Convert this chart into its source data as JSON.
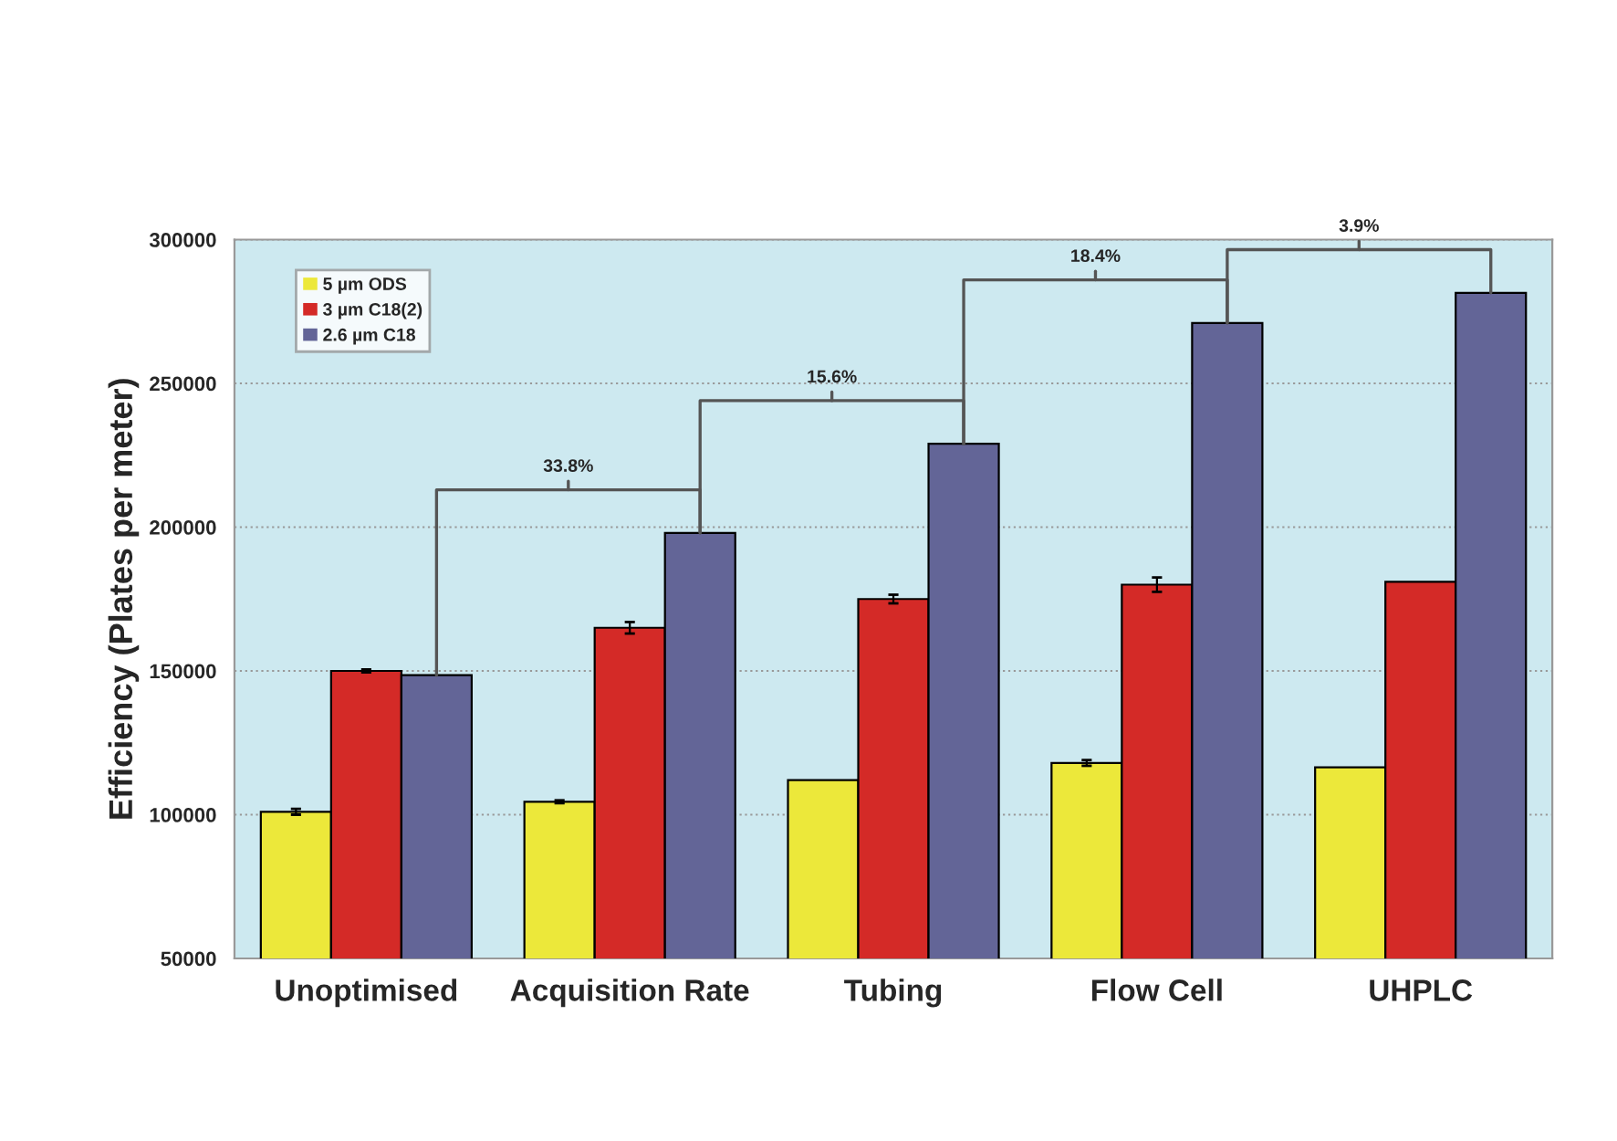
{
  "chart_data": {
    "type": "bar",
    "ylabel": "Efficiency (Plates per meter)",
    "categories": [
      "Unoptimised",
      "Acquisition Rate",
      "Tubing",
      "Flow Cell",
      "UHPLC"
    ],
    "series": [
      {
        "name": "5 µm ODS",
        "color": "#ece83a",
        "values": [
          101000,
          104500,
          112000,
          118000,
          116500
        ],
        "errors": [
          1000,
          500,
          null,
          1000,
          null
        ]
      },
      {
        "name": "3 µm C18(2)",
        "color": "#d42a27",
        "values": [
          150000,
          165000,
          175000,
          180000,
          181000
        ],
        "errors": [
          500,
          2000,
          1500,
          2500,
          null
        ]
      },
      {
        "name": "2.6 µm C18",
        "color": "#636597",
        "values": [
          148500,
          198000,
          229000,
          271000,
          281500
        ]
      }
    ],
    "ylim": [
      50000,
      300000
    ],
    "yticks": [
      50000,
      100000,
      150000,
      200000,
      250000,
      300000
    ],
    "grid": "y",
    "legend": "top left",
    "annotations": [
      "33.8%",
      "15.6%",
      "18.4%",
      "3.9%"
    ]
  }
}
